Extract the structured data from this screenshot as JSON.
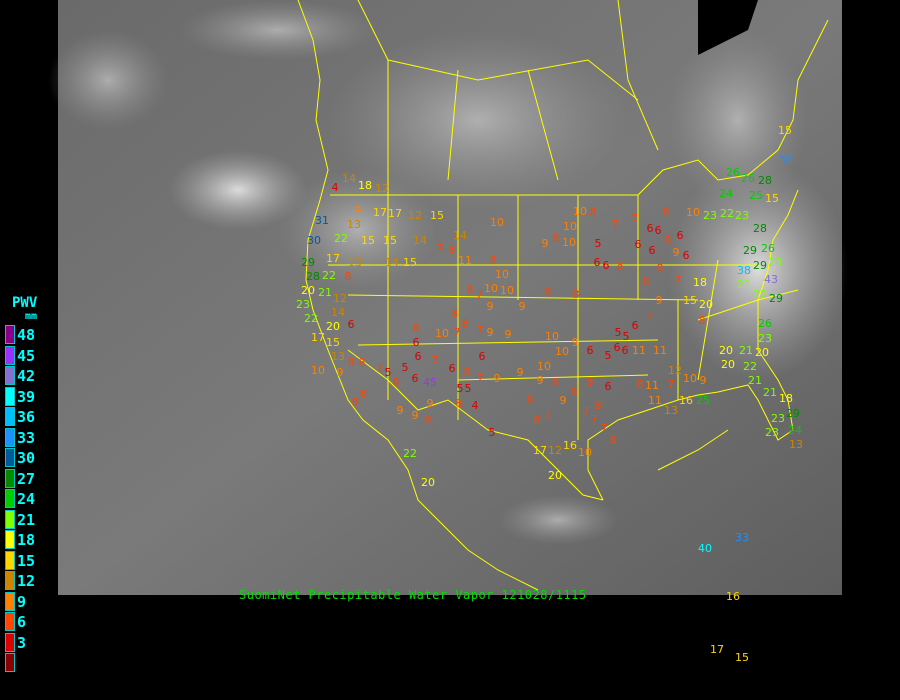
{
  "caption": "SuomiNet Precipitable Water Vapor  121028/1115",
  "legend": {
    "title": "PWV",
    "unit": "mm",
    "labels": [
      "48",
      "45",
      "42",
      "39",
      "36",
      "33",
      "30",
      "27",
      "24",
      "21",
      "18",
      "15",
      "12",
      "9",
      "6",
      "3"
    ],
    "colors": [
      "#8b008b",
      "#9b30ff",
      "#8470d0",
      "#00ffff",
      "#00bfff",
      "#1e90ff",
      "#005a9c",
      "#008b00",
      "#00cd00",
      "#7fff00",
      "#ffff00",
      "#ffd700",
      "#cd8500",
      "#ff8000",
      "#ff4500",
      "#dd0000",
      "#8b0000"
    ]
  },
  "colors": {
    "boundaries": "#ffff00",
    "background": "#000000",
    "caption": "#00e000"
  },
  "stations": [
    4,
    14,
    18,
    12,
    9,
    17,
    17,
    31,
    13,
    22,
    30,
    15,
    15,
    17,
    13,
    14,
    15,
    29,
    28,
    22,
    20,
    8,
    23,
    21,
    12,
    14,
    22,
    20,
    6,
    17,
    15,
    13,
    10,
    8,
    8,
    9,
    8,
    8,
    7,
    5,
    5,
    6,
    7,
    6,
    45,
    5,
    8,
    9,
    9,
    9,
    8,
    12,
    15,
    14,
    14,
    7,
    8,
    11,
    8,
    10,
    10,
    10,
    8,
    7,
    9,
    9,
    8,
    8,
    10,
    7,
    7,
    9,
    9,
    8,
    6,
    6,
    6,
    8,
    7,
    5,
    4,
    8,
    9,
    5,
    10,
    9,
    8,
    10,
    8,
    10,
    10,
    5,
    6,
    8,
    8,
    10,
    10,
    9,
    6,
    5,
    5,
    5,
    6,
    6,
    9,
    8,
    9,
    10,
    8,
    8,
    8,
    7,
    9,
    8,
    7,
    6,
    8,
    7,
    7,
    17,
    12,
    16,
    10,
    8,
    6,
    8,
    7,
    7,
    8,
    6,
    6,
    6,
    8,
    6,
    9,
    6,
    6,
    8,
    8,
    9,
    7,
    10,
    15,
    20,
    8,
    7,
    6,
    11,
    11,
    12,
    10,
    9,
    11,
    7,
    8,
    11,
    13,
    16,
    25,
    26,
    26,
    24,
    22,
    23,
    23,
    25,
    15,
    28,
    26,
    28,
    29,
    29,
    23,
    38,
    43,
    29,
    26,
    23,
    20,
    21,
    22,
    18,
    21,
    20,
    20,
    22,
    21,
    21,
    18,
    29,
    23,
    23,
    24,
    13,
    15,
    35,
    40,
    33,
    16,
    17,
    15,
    22,
    20,
    20
  ]
}
